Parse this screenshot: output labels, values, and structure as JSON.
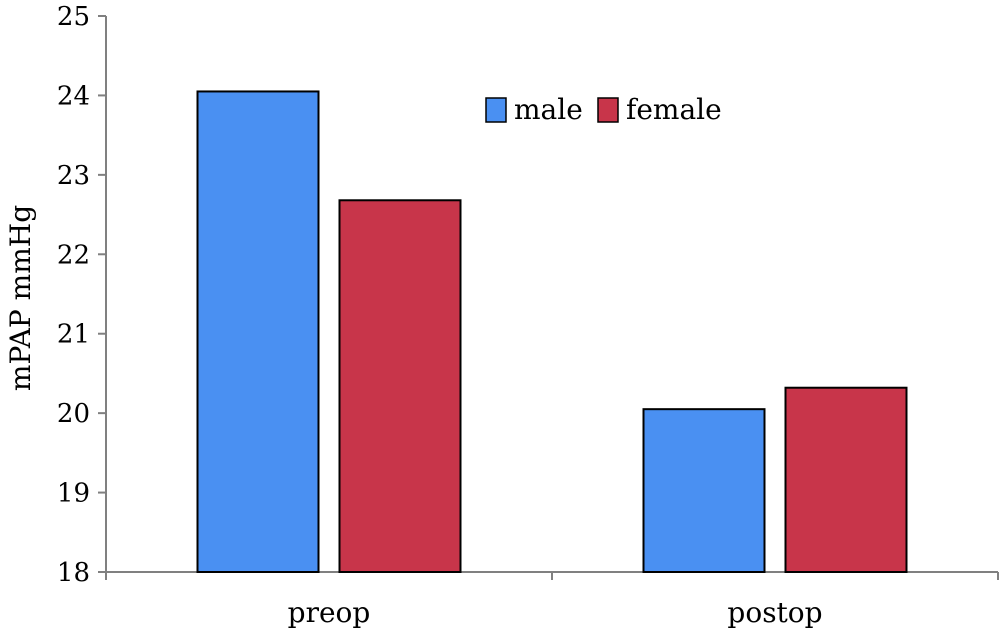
{
  "chart_data": {
    "type": "bar",
    "categories": [
      "preop",
      "postop"
    ],
    "series": [
      {
        "name": "male",
        "values": [
          24.05,
          20.05
        ],
        "color": "#4A90F2"
      },
      {
        "name": "female",
        "values": [
          22.68,
          20.32
        ],
        "color": "#C8354A"
      }
    ],
    "title": "",
    "xlabel": "",
    "ylabel": "mPAP mmHg",
    "ylim": [
      18,
      25
    ],
    "yticks": [
      "18",
      "19",
      "20",
      "21",
      "22",
      "23",
      "24",
      "25"
    ],
    "grid": false,
    "legend_position": "top-center"
  }
}
